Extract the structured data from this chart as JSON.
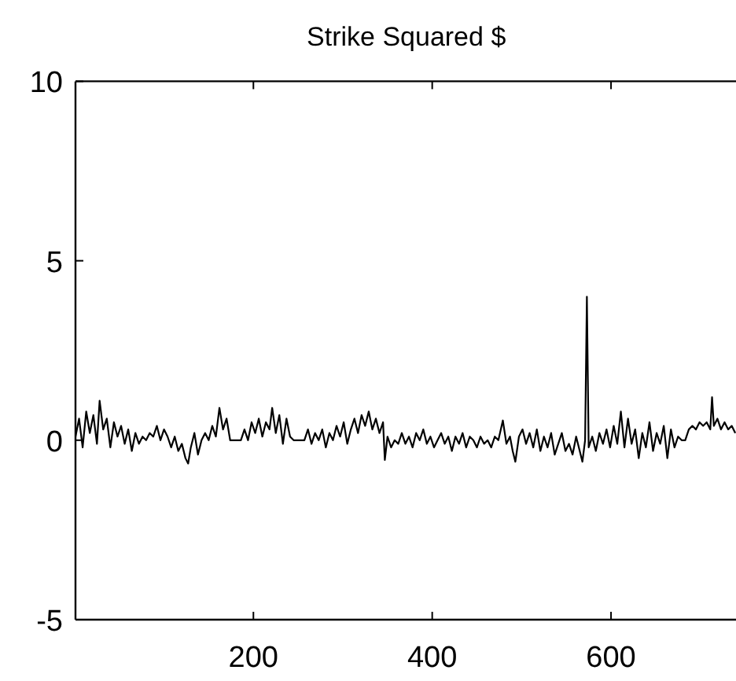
{
  "chart_data": {
    "type": "line",
    "title": "Strike Squared $",
    "xlim": [
      1,
      741
    ],
    "xticks": [
      200,
      400,
      600
    ],
    "ylim": [
      -5,
      10
    ],
    "yticks": [
      -5,
      0,
      5,
      10
    ],
    "grid": false,
    "marker": "none",
    "line_style": "solid",
    "series": [
      {
        "color": "#000000",
        "x": [
          1,
          5,
          9,
          13,
          17,
          21,
          25,
          28,
          32,
          36,
          40,
          44,
          48,
          52,
          56,
          60,
          64,
          68,
          72,
          76,
          80,
          84,
          88,
          92,
          96,
          100,
          104,
          108,
          112,
          116,
          120,
          124,
          127,
          130,
          134,
          138,
          142,
          146,
          150,
          154,
          158,
          162,
          166,
          170,
          174,
          178,
          182,
          186,
          190,
          194,
          198,
          202,
          206,
          210,
          214,
          218,
          221,
          225,
          229,
          233,
          237,
          241,
          245,
          249,
          253,
          257,
          261,
          265,
          269,
          273,
          277,
          281,
          285,
          289,
          293,
          297,
          301,
          305,
          309,
          313,
          317,
          321,
          325,
          329,
          333,
          337,
          341,
          345,
          347,
          350,
          354,
          358,
          362,
          366,
          370,
          374,
          378,
          382,
          386,
          390,
          394,
          398,
          402,
          406,
          410,
          414,
          418,
          422,
          426,
          430,
          434,
          438,
          442,
          446,
          450,
          454,
          458,
          462,
          466,
          470,
          474,
          479,
          483,
          487,
          490,
          493,
          497,
          501,
          505,
          509,
          513,
          517,
          521,
          525,
          529,
          533,
          537,
          541,
          545,
          549,
          553,
          557,
          561,
          565,
          568,
          571,
          573,
          575,
          579,
          583,
          587,
          591,
          595,
          599,
          603,
          607,
          611,
          615,
          619,
          623,
          627,
          631,
          635,
          639,
          643,
          647,
          651,
          655,
          659,
          663,
          667,
          671,
          675,
          679,
          683,
          687,
          691,
          695,
          699,
          703,
          707,
          711,
          713,
          715,
          719,
          723,
          727,
          731,
          735,
          739
        ],
        "values": [
          0.1,
          0.6,
          -0.2,
          0.8,
          0.2,
          0.7,
          -0.1,
          1.1,
          0.3,
          0.6,
          -0.2,
          0.5,
          0.1,
          0.4,
          -0.1,
          0.3,
          -0.3,
          0.2,
          -0.1,
          0.1,
          0.0,
          0.2,
          0.1,
          0.4,
          0.0,
          0.3,
          0.1,
          -0.2,
          0.1,
          -0.3,
          -0.1,
          -0.5,
          -0.65,
          -0.2,
          0.2,
          -0.4,
          0.0,
          0.2,
          0.0,
          0.4,
          0.1,
          0.9,
          0.3,
          0.6,
          0.0,
          0.0,
          0.0,
          0.0,
          0.3,
          0.0,
          0.5,
          0.2,
          0.6,
          0.1,
          0.5,
          0.3,
          0.9,
          0.2,
          0.7,
          -0.1,
          0.6,
          0.1,
          0.0,
          0.0,
          0.0,
          0.0,
          0.3,
          -0.1,
          0.2,
          0.0,
          0.3,
          -0.2,
          0.2,
          0.0,
          0.4,
          0.1,
          0.5,
          -0.1,
          0.3,
          0.6,
          0.2,
          0.7,
          0.4,
          0.8,
          0.3,
          0.6,
          0.2,
          0.5,
          -0.55,
          0.1,
          -0.2,
          0.0,
          -0.1,
          0.2,
          -0.1,
          0.1,
          -0.2,
          0.2,
          0.0,
          0.3,
          -0.1,
          0.1,
          -0.2,
          0.0,
          0.2,
          -0.1,
          0.1,
          -0.3,
          0.1,
          -0.1,
          0.2,
          -0.2,
          0.1,
          0.0,
          -0.2,
          0.1,
          -0.1,
          0.0,
          -0.2,
          0.1,
          0.0,
          0.55,
          -0.1,
          0.1,
          -0.3,
          -0.6,
          0.1,
          0.3,
          -0.1,
          0.2,
          -0.2,
          0.3,
          -0.3,
          0.1,
          -0.2,
          0.2,
          -0.4,
          -0.1,
          0.2,
          -0.3,
          -0.1,
          -0.4,
          0.1,
          -0.3,
          -0.6,
          0.0,
          4.0,
          -0.2,
          0.1,
          -0.3,
          0.2,
          -0.1,
          0.3,
          -0.2,
          0.4,
          -0.1,
          0.8,
          -0.2,
          0.6,
          -0.1,
          0.3,
          -0.5,
          0.2,
          -0.2,
          0.5,
          -0.3,
          0.2,
          -0.1,
          0.4,
          -0.5,
          0.3,
          -0.2,
          0.1,
          0.0,
          0.0,
          0.3,
          0.4,
          0.3,
          0.5,
          0.4,
          0.5,
          0.3,
          1.2,
          0.4,
          0.6,
          0.3,
          0.5,
          0.3,
          0.4,
          0.2
        ]
      }
    ]
  }
}
